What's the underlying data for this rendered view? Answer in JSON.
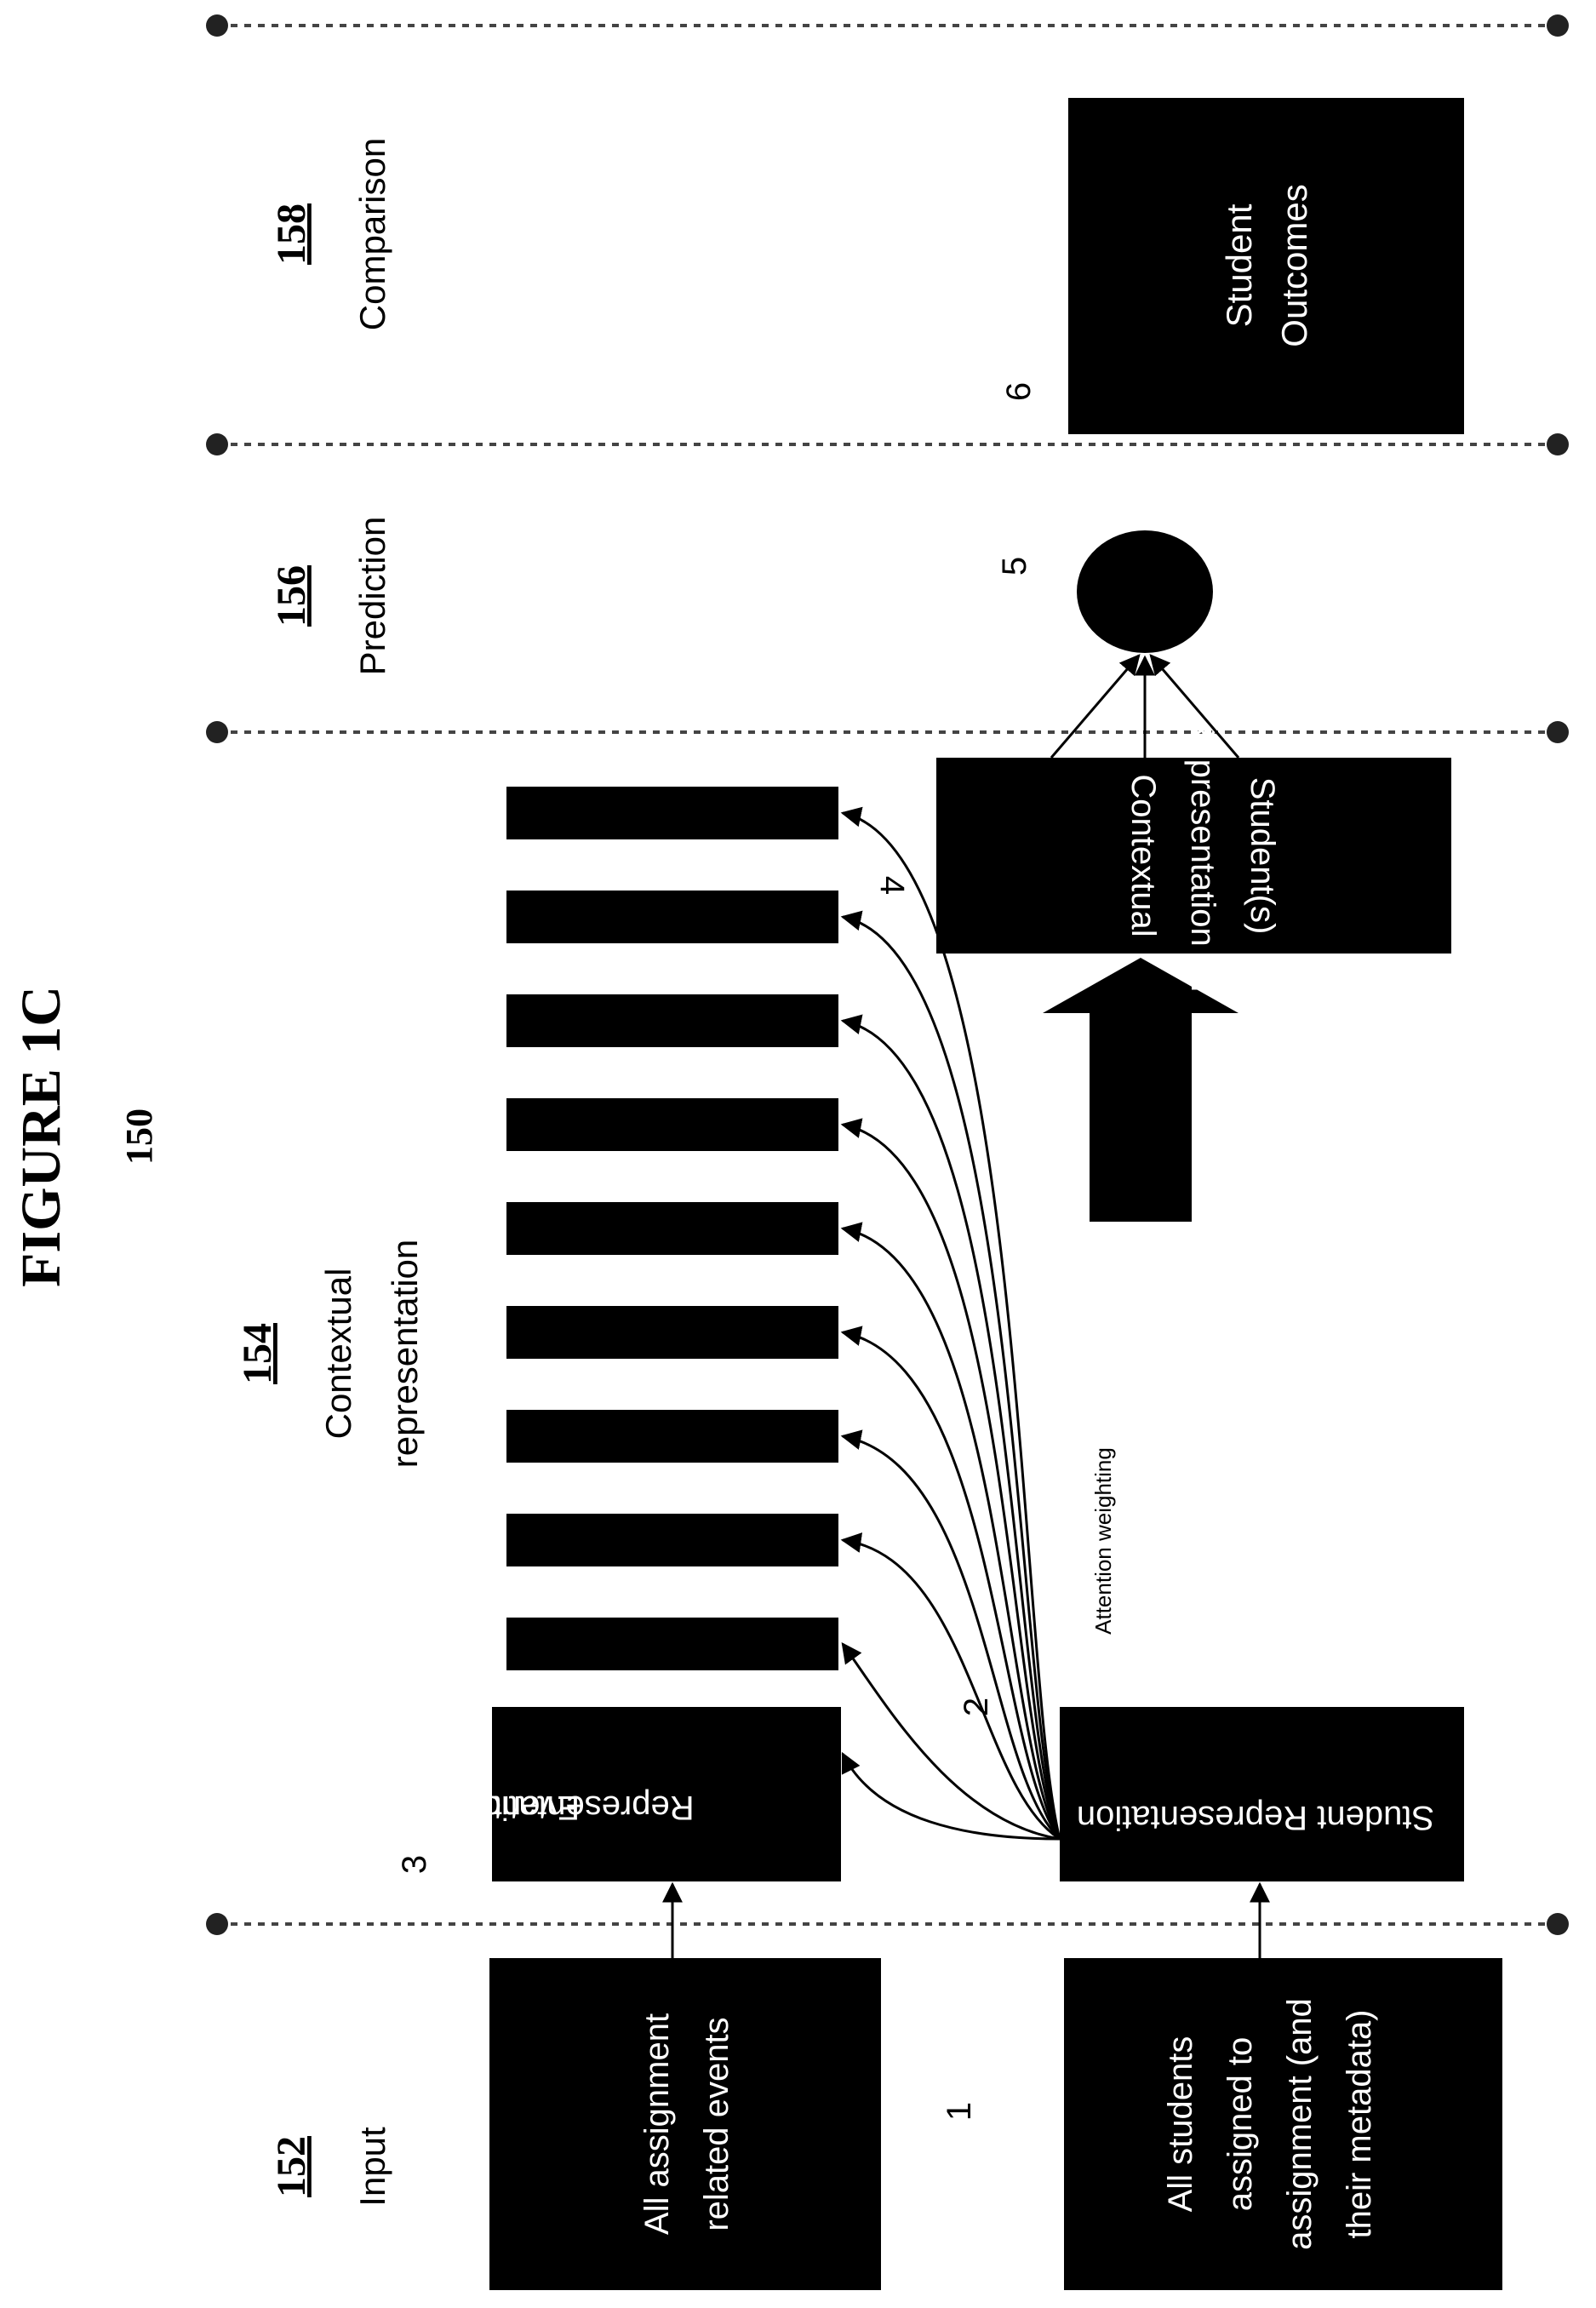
{
  "figure": {
    "title": "FIGURE 1C",
    "number": "150"
  },
  "sections": {
    "input": {
      "ref": "152",
      "label": "Input"
    },
    "contextual": {
      "ref": "154",
      "label_line1": "Contextual",
      "label_line2": "representation"
    },
    "prediction": {
      "ref": "156",
      "label": "Prediction"
    },
    "comparison": {
      "ref": "158",
      "label": "Comparison"
    }
  },
  "steps": {
    "s1": "1",
    "s2": "2",
    "s3": "3",
    "s4": "4",
    "s5": "5",
    "s6": "6"
  },
  "boxes": {
    "events_line1": "All assignment",
    "events_line2": "related events",
    "students_line1": "All students",
    "students_line2": "assigned to",
    "students_line3": "assignment (and",
    "students_line4": "their metadata)",
    "student_rep": "Student Representation",
    "event_rep_line1": "Event",
    "event_rep_line2": "Representation",
    "contextual_line1": "Contextual",
    "contextual_line2": "Representation for",
    "contextual_line3": "Student(s)",
    "outcomes_line1": "Student",
    "outcomes_line2": "Outcomes"
  },
  "annotations": {
    "attention": "Attention weighting"
  },
  "colors": {
    "ink": "#000000",
    "paper": "#ffffff",
    "dotted": "#444444"
  }
}
